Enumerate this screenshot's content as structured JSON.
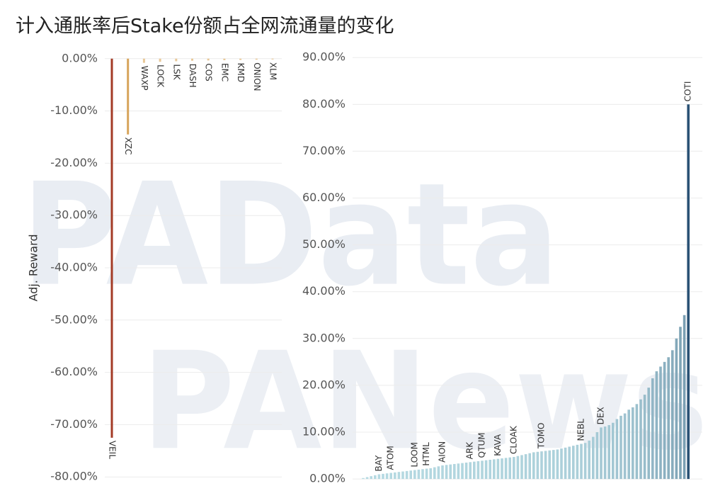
{
  "title": "计入通胀率后Stake份额占全网流通量的变化",
  "watermarks": [
    "PAData",
    "PANews"
  ],
  "chart_data": [
    {
      "type": "bar",
      "ylabel": "Adj. Reward",
      "categories": [
        "VEIL",
        "XZC",
        "WAXP",
        "LOCK",
        "LSK",
        "DASH",
        "COS",
        "EMC",
        "KMD",
        "ONION",
        "XLM"
      ],
      "values": [
        -72.5,
        -14.5,
        -0.8,
        -0.6,
        -0.5,
        -0.4,
        -0.35,
        -0.3,
        -0.25,
        -0.2,
        -0.15
      ],
      "colors": [
        "#a33b26",
        "#d7a45b",
        "#e8c898",
        "#e8c898",
        "#e8c898",
        "#e8c898",
        "#e8c898",
        "#e8c898",
        "#e8c898",
        "#e8c898",
        "#e8c898"
      ],
      "ylim": [
        -82,
        2
      ],
      "yticks": [
        {
          "value": 0,
          "label": "0.00%"
        },
        {
          "value": -10,
          "label": "-10.00%"
        },
        {
          "value": -20,
          "label": "-20.00%"
        },
        {
          "value": -30,
          "label": "-30.00%"
        },
        {
          "value": -40,
          "label": "-40.00%"
        },
        {
          "value": -50,
          "label": "-50.00%"
        },
        {
          "value": -60,
          "label": "-60.00%"
        },
        {
          "value": -70,
          "label": "-70.00%"
        },
        {
          "value": -80,
          "label": "-80.00%"
        }
      ],
      "grid": true
    },
    {
      "type": "bar",
      "categories": [
        null,
        null,
        null,
        null,
        "BAY",
        null,
        null,
        "ATOM",
        null,
        null,
        null,
        null,
        null,
        "LOOM",
        null,
        null,
        "HTML",
        null,
        null,
        null,
        "AION",
        null,
        null,
        null,
        null,
        null,
        null,
        "ARK",
        null,
        null,
        "QTUM",
        null,
        null,
        null,
        "KAVA",
        null,
        null,
        null,
        "CLOAK",
        null,
        null,
        null,
        null,
        null,
        null,
        "TOMO",
        null,
        null,
        null,
        null,
        null,
        null,
        null,
        null,
        null,
        "NEBL",
        null,
        null,
        null,
        null,
        "DEX",
        null,
        null,
        null,
        null,
        null,
        null,
        null,
        null,
        null,
        null,
        null,
        null,
        null,
        null,
        null,
        null,
        null,
        null,
        null,
        null,
        null,
        "COTI"
      ],
      "values": [
        0.2,
        0.4,
        0.6,
        0.8,
        1,
        1.1,
        1.2,
        1.3,
        1.4,
        1.5,
        1.6,
        1.7,
        1.8,
        1.9,
        2,
        2.1,
        2.2,
        2.3,
        2.5,
        2.7,
        2.9,
        3,
        3.1,
        3.2,
        3.3,
        3.4,
        3.5,
        3.6,
        3.7,
        3.8,
        3.9,
        4,
        4.1,
        4.2,
        4.3,
        4.4,
        4.5,
        4.6,
        4.7,
        4.9,
        5.1,
        5.3,
        5.5,
        5.7,
        5.8,
        5.9,
        6,
        6.1,
        6.2,
        6.3,
        6.5,
        6.7,
        6.9,
        7.1,
        7.3,
        7.5,
        7.7,
        8.2,
        9,
        10,
        11,
        11.2,
        11.5,
        12,
        12.8,
        13.5,
        14,
        14.8,
        15.3,
        16,
        17,
        18,
        19.5,
        21.5,
        23,
        24,
        25,
        26,
        27.5,
        30,
        32.5,
        35,
        80
      ],
      "color_range": [
        "#b7dbe3",
        "#2b5275"
      ],
      "ylim": [
        -1.8,
        92
      ],
      "yticks": [
        {
          "value": 0,
          "label": "0.00%"
        },
        {
          "value": 10,
          "label": "10.00%"
        },
        {
          "value": 20,
          "label": "20.00%"
        },
        {
          "value": 30,
          "label": "30.00%"
        },
        {
          "value": 40,
          "label": "40.00%"
        },
        {
          "value": 50,
          "label": "50.00%"
        },
        {
          "value": 60,
          "label": "60.00%"
        },
        {
          "value": 70,
          "label": "70.00%"
        },
        {
          "value": 80,
          "label": "80.00%"
        },
        {
          "value": 90,
          "label": "90.00%"
        }
      ],
      "grid": true
    }
  ]
}
